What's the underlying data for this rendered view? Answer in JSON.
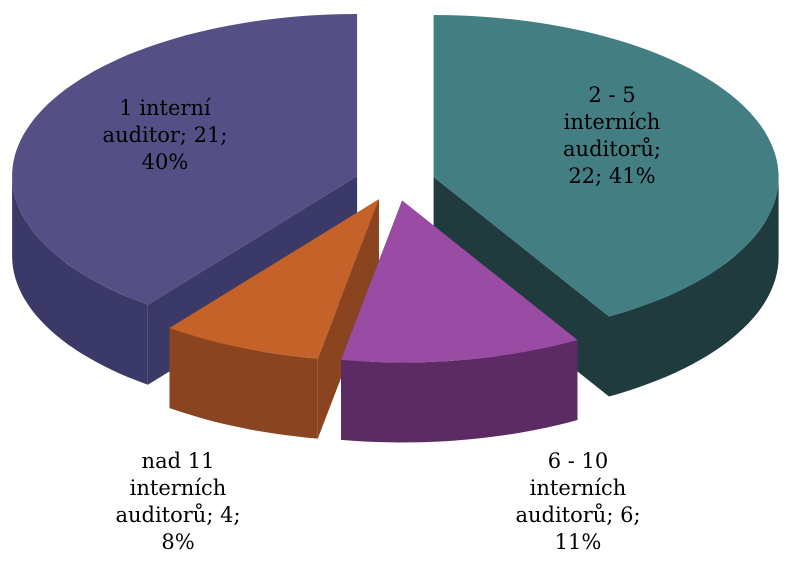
{
  "chart_data": {
    "type": "pie3d",
    "categories": [
      "1 interní auditor",
      "2 - 5 interních auditorů",
      "6 - 10 interních auditorů",
      "nad 11 interních auditorů"
    ],
    "values": [
      21,
      22,
      6,
      4
    ],
    "percent_labels": [
      "40%",
      "41%",
      "11%",
      "8%"
    ],
    "label_separator": "; ",
    "colors": [
      "#545086",
      "#437e83",
      "#9a4ba3",
      "#c4622a"
    ],
    "side_colors": [
      "#3b3968",
      "#1f3b3d",
      "#5c2b63",
      "#8a4420"
    ]
  }
}
